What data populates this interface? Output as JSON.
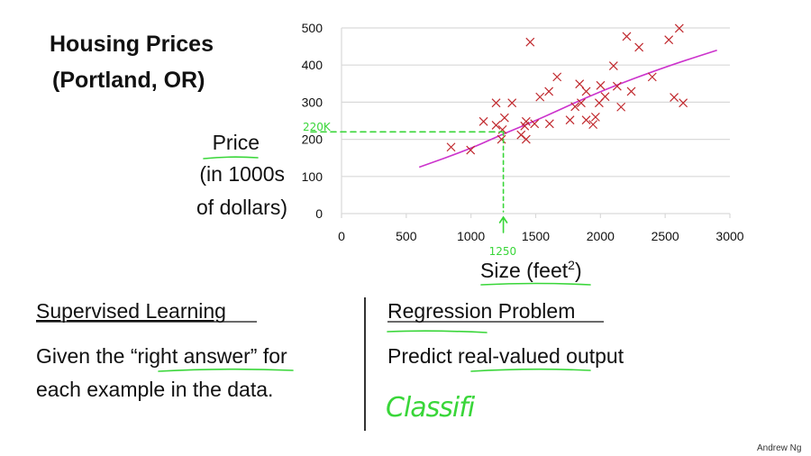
{
  "slide": {
    "title_line1": "Housing Prices",
    "title_line2": "(Portland, OR)",
    "ylabel_line1": "Price",
    "ylabel_line2": "(in 1000s",
    "ylabel_line3": "of dollars)",
    "xlabel_base": "Size (feet",
    "xlabel_sup": "2",
    "xlabel_end": ")",
    "left_heading": "Supervised Learning",
    "left_line1": "Given the “right answer” for",
    "left_line2": "each example in the data.",
    "right_heading": "Regression Problem",
    "right_line1": "Predict real-valued output",
    "handwritten_note": "Classifi",
    "author": "Andrew Ng"
  },
  "annotations": {
    "price_readout": "220K",
    "size_readout": "1250",
    "price_value": 220,
    "size_value": 1250,
    "color": "#39d639"
  },
  "chart_data": {
    "type": "scatter",
    "xlim": [
      0,
      3000
    ],
    "ylim": [
      0,
      500
    ],
    "x_ticks": [
      "0",
      "500",
      "1000",
      "1500",
      "2000",
      "2500",
      "3000"
    ],
    "y_ticks": [
      "0",
      "100",
      "200",
      "300",
      "400",
      "500"
    ],
    "grid": "horizontal",
    "marker": "x",
    "marker_color": "#c0282d",
    "points": [
      [
        846,
        179
      ],
      [
        997,
        171
      ],
      [
        1097,
        248
      ],
      [
        1194,
        298
      ],
      [
        1194,
        238
      ],
      [
        1259,
        258
      ],
      [
        1236,
        200
      ],
      [
        1243,
        226
      ],
      [
        1317,
        298
      ],
      [
        1457,
        462
      ],
      [
        1387,
        212
      ],
      [
        1426,
        200
      ],
      [
        1415,
        236
      ],
      [
        1426,
        248
      ],
      [
        1491,
        242
      ],
      [
        1533,
        314
      ],
      [
        1602,
        329
      ],
      [
        1607,
        242
      ],
      [
        1665,
        368
      ],
      [
        1765,
        252
      ],
      [
        1804,
        288
      ],
      [
        1839,
        349
      ],
      [
        1851,
        298
      ],
      [
        1890,
        329
      ],
      [
        1890,
        252
      ],
      [
        1962,
        260
      ],
      [
        1943,
        240
      ],
      [
        1990,
        298
      ],
      [
        2001,
        345
      ],
      [
        2036,
        315
      ],
      [
        2101,
        398
      ],
      [
        2129,
        343
      ],
      [
        2159,
        287
      ],
      [
        2203,
        477
      ],
      [
        2238,
        329
      ],
      [
        2298,
        448
      ],
      [
        2400,
        368
      ],
      [
        2528,
        468
      ],
      [
        2569,
        313
      ],
      [
        2609,
        499
      ],
      [
        2639,
        298
      ]
    ],
    "fit_curve": {
      "color": "#cc33cc",
      "points": [
        [
          600,
          125
        ],
        [
          1000,
          175
        ],
        [
          1250,
          215
        ],
        [
          1500,
          250
        ],
        [
          2000,
          330
        ],
        [
          2500,
          395
        ],
        [
          2900,
          440
        ]
      ]
    }
  }
}
